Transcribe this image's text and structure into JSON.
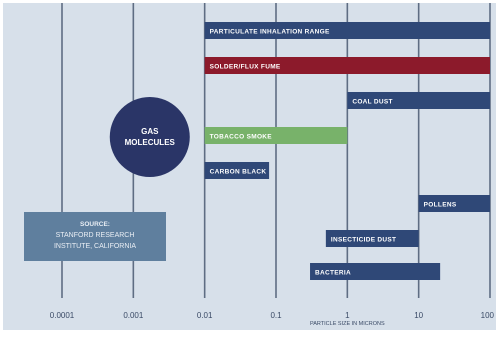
{
  "chart_data": {
    "type": "bar",
    "scale": "log",
    "xlabel": "PARTICLE SIZE IN MICRONS",
    "xlim": [
      0.0001,
      100
    ],
    "x_ticks": [
      {
        "value": 0.0001,
        "label": "0.0001"
      },
      {
        "value": 0.001,
        "label": "0.001"
      },
      {
        "value": 0.01,
        "label": "0.01"
      },
      {
        "value": 0.1,
        "label": "0.1"
      },
      {
        "value": 1,
        "label": "1"
      },
      {
        "value": 10,
        "label": "10"
      },
      {
        "value": 100,
        "label": "100"
      }
    ],
    "grid": true,
    "ranges": [
      {
        "name": "PARTICULATE INHALATION RANGE",
        "min": 0.01,
        "max": 100,
        "color": "#2f4877"
      },
      {
        "name": "SOLDER/FLUX FUME",
        "min": 0.01,
        "max": 100,
        "color": "#8c1a2b"
      },
      {
        "name": "COAL DUST",
        "min": 1,
        "max": 100,
        "color": "#2f4877"
      },
      {
        "name": "TOBACCO SMOKE",
        "min": 0.01,
        "max": 1,
        "color": "#78b26a"
      },
      {
        "name": "CARBON BLACK",
        "min": 0.01,
        "max": 0.08,
        "color": "#2f4877"
      },
      {
        "name": "POLLENS",
        "min": 10,
        "max": 100,
        "color": "#2f4877"
      },
      {
        "name": "INSECTICIDE DUST",
        "min": 0.5,
        "max": 10,
        "color": "#2f4877"
      },
      {
        "name": "BACTERIA",
        "min": 0.3,
        "max": 20,
        "color": "#2f4877"
      }
    ],
    "annotations": [
      {
        "kind": "circle",
        "lines": [
          "GAS",
          "MOLECULES"
        ],
        "x": 0.0017,
        "color": "#2a3567"
      }
    ],
    "source_lines": [
      "SOURCE:",
      "STANFORD RESEARCH",
      "INSTITUTE, CALIFORNIA"
    ]
  },
  "colors": {
    "background": "#ffffff",
    "panel": "#d7e0ea",
    "gridline": "#4a5a72",
    "axis_text": "#3a4a66",
    "bar_text": "#ffffff",
    "source_box": "#5f7f9e",
    "source_text": "#e9eef4"
  }
}
